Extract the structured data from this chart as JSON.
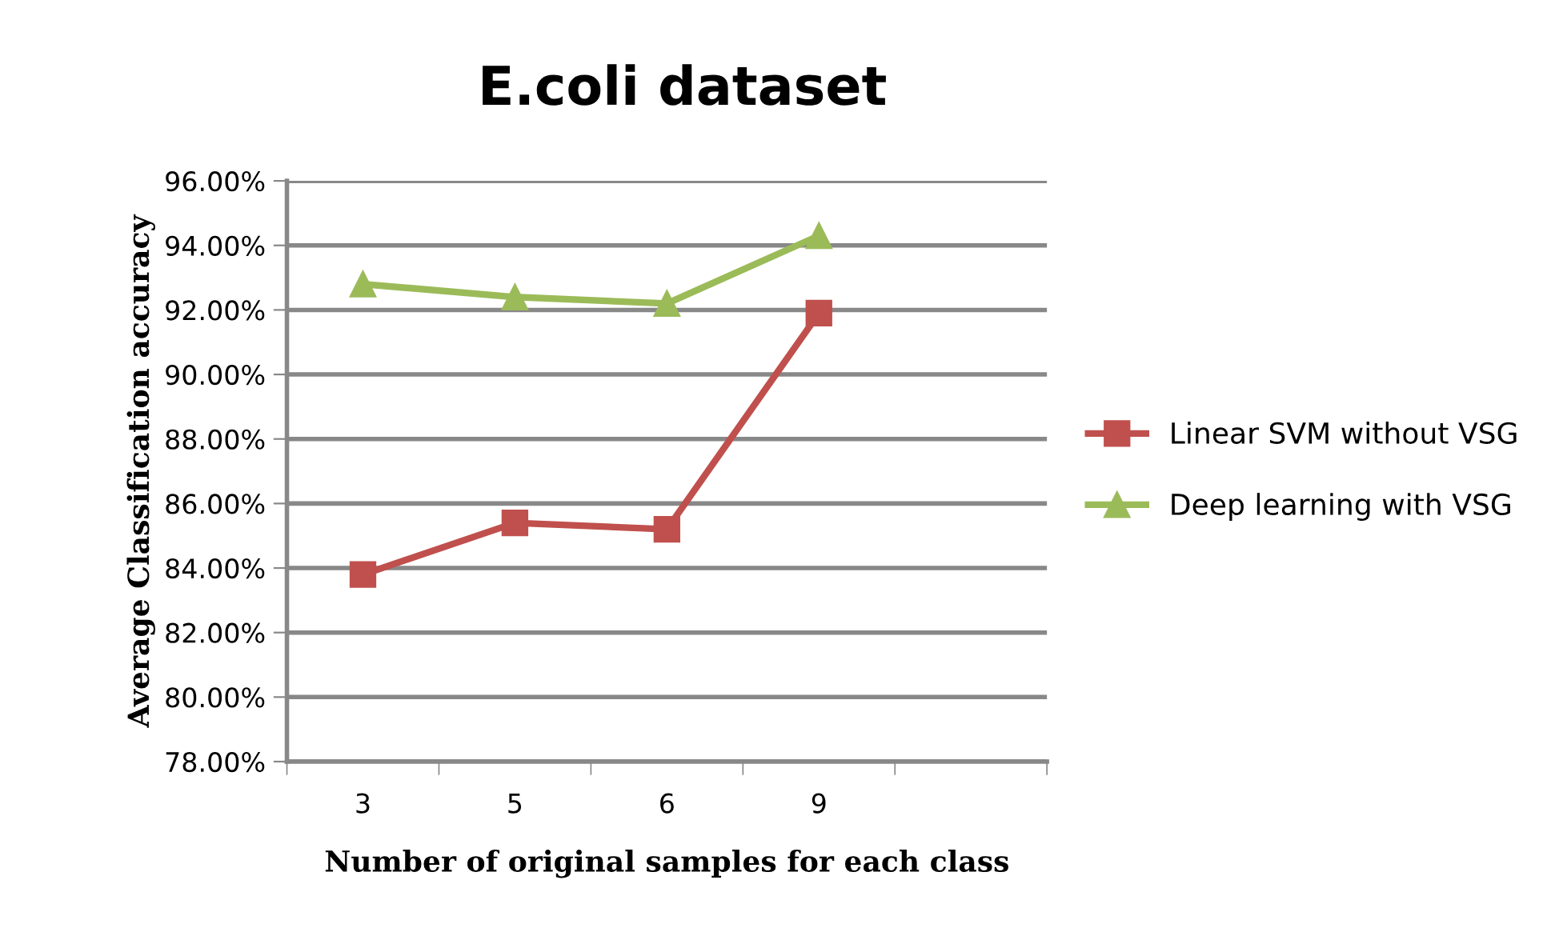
{
  "chart_data": {
    "type": "line",
    "title": "E.coli dataset",
    "xlabel": "Number of original samples for each class",
    "ylabel": "Average Classification accuracy",
    "categories": [
      "3",
      "5",
      "6",
      "9",
      null
    ],
    "series": [
      {
        "name": "Linear SVM without VSG",
        "color": "#c0504d",
        "marker": "square",
        "values": [
          83.8,
          85.4,
          85.2,
          91.9,
          null
        ]
      },
      {
        "name": "Deep learning with VSG",
        "color": "#9bbb59",
        "marker": "triangle",
        "values": [
          92.8,
          92.4,
          92.2,
          94.3,
          null
        ]
      }
    ],
    "ylim": [
      78,
      96
    ],
    "yticks": [
      {
        "value": 78,
        "label": "78.00%"
      },
      {
        "value": 80,
        "label": "80.00%"
      },
      {
        "value": 82,
        "label": "82.00%"
      },
      {
        "value": 84,
        "label": "84.00%"
      },
      {
        "value": 86,
        "label": "86.00%"
      },
      {
        "value": 88,
        "label": "88.00%"
      },
      {
        "value": 90,
        "label": "90.00%"
      },
      {
        "value": 92,
        "label": "92.00%"
      },
      {
        "value": 94,
        "label": "94.00%"
      },
      {
        "value": 96,
        "label": "96.00%"
      }
    ],
    "grid": "y",
    "legend": "right",
    "line_style": "solid"
  }
}
